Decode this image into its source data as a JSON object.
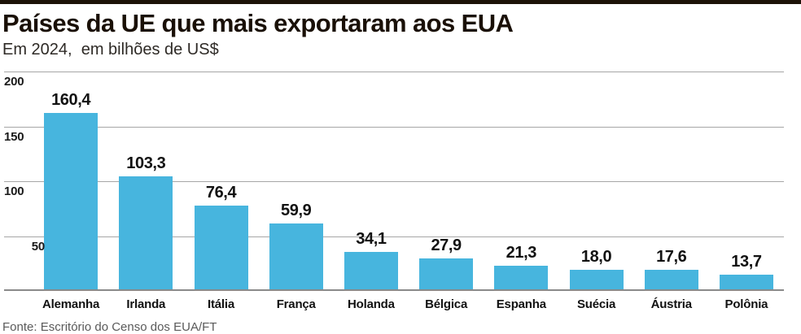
{
  "header": {
    "title": "Países da UE que mais exportaram aos EUA",
    "subtitle": "Em 2024,  em bilhões de US$"
  },
  "chart_data": {
    "type": "bar",
    "title": "Países da UE que mais exportaram aos EUA",
    "subtitle": "Em 2024, em bilhões de US$",
    "unit": "bilhões de US$",
    "categories": [
      "Alemanha",
      "Irlanda",
      "Itália",
      "França",
      "Holanda",
      "Bélgica",
      "Espanha",
      "Suécia",
      "Áustria",
      "Polônia"
    ],
    "values": [
      160.4,
      103.3,
      76.4,
      59.9,
      34.1,
      27.9,
      21.3,
      18.0,
      17.6,
      13.7
    ],
    "value_labels": [
      "160,4",
      "103,3",
      "76,4",
      "59,9",
      "34,1",
      "27,9",
      "21,3",
      "18,0",
      "17,6",
      "13,7"
    ],
    "y_ticks": [
      200,
      150,
      100,
      50
    ],
    "ylim": [
      0,
      200
    ],
    "grid": true,
    "legend": "none",
    "bar_color": "#47b5de"
  },
  "footer": {
    "source": "Fonte: Escritório do Censo dos EUA/FT"
  },
  "colors": {
    "bar": "#47b5de",
    "grid": "#a6a6a6",
    "baseline": "#8a8a8a",
    "top_rule": "#1d1207",
    "title_text": "#1a1006"
  }
}
